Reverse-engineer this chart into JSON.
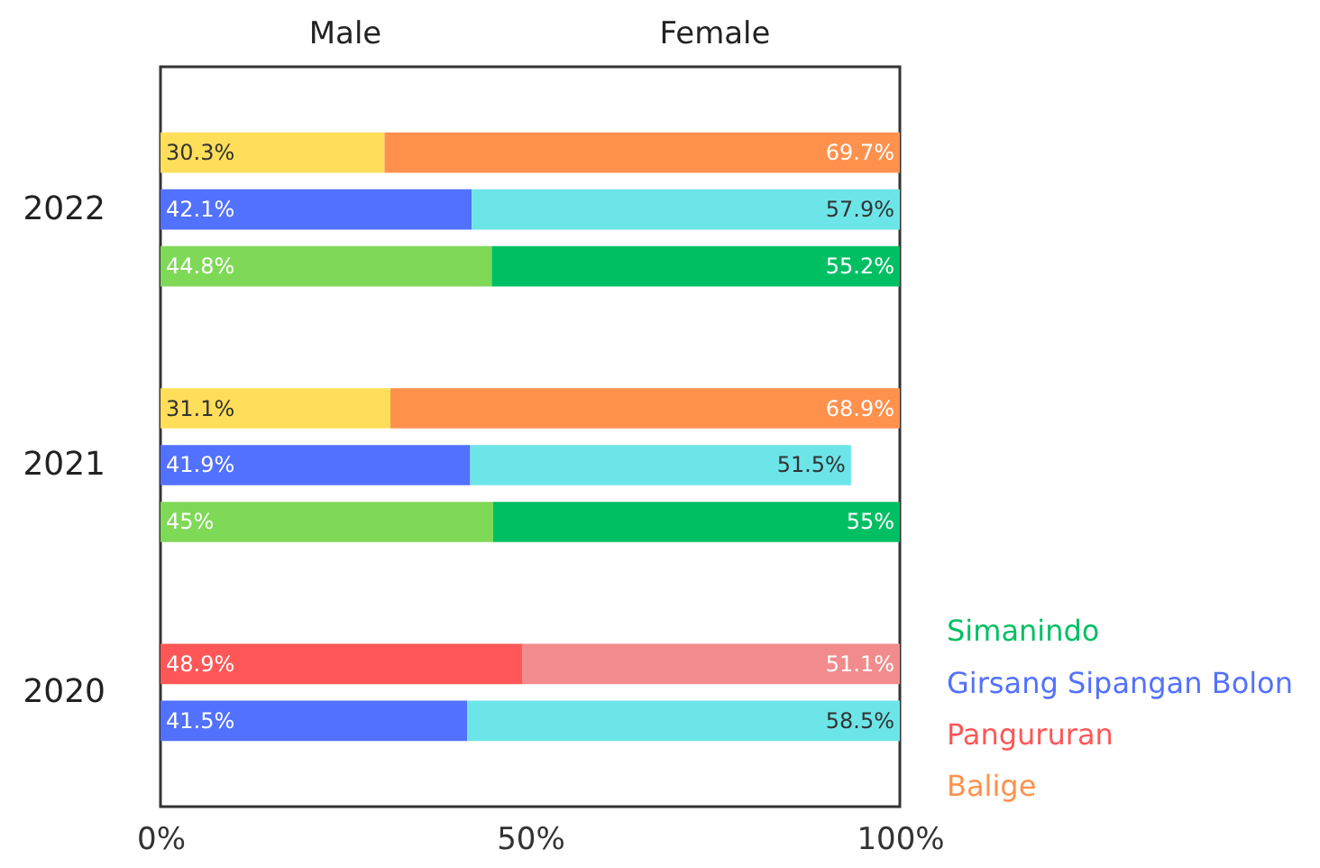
{
  "chart_data": {
    "type": "bar",
    "orientation": "horizontal",
    "stacked": true,
    "categories": [
      null,
      null,
      "2022",
      null,
      null,
      null,
      null,
      null,
      null,
      null,
      null,
      "2021",
      null,
      null,
      null,
      null,
      null,
      null,
      null,
      "2020",
      null
    ],
    "annotations": [
      "Male",
      "Female"
    ],
    "xlim": [
      0,
      100
    ],
    "xticks": [
      {
        "value": 0,
        "label": "0%"
      },
      {
        "value": 50,
        "label": "50%"
      },
      {
        "value": 100,
        "label": "100%"
      }
    ],
    "series": [
      {
        "color": "#ffde59",
        "values": [
          30.3,
          null,
          null,
          null,
          null,
          null,
          null,
          null,
          null,
          31.1,
          null,
          null,
          null,
          null,
          null,
          null,
          null,
          null,
          null,
          null,
          null
        ],
        "value_labels": [
          "30.3%",
          null,
          null,
          null,
          null,
          null,
          null,
          null,
          null,
          "31.1%",
          null,
          null,
          null,
          null,
          null,
          null,
          null,
          null,
          null,
          null,
          null
        ]
      },
      {
        "name": "Balige",
        "color": "#ff914d",
        "values": [
          69.7,
          null,
          null,
          null,
          null,
          null,
          null,
          null,
          null,
          68.9,
          null,
          null,
          null,
          null,
          null,
          null,
          null,
          null,
          null,
          null,
          null
        ],
        "value_labels": [
          "69.7%",
          null,
          null,
          null,
          null,
          null,
          null,
          null,
          null,
          "68.9%",
          null,
          null,
          null,
          null,
          null,
          null,
          null,
          null,
          null,
          null,
          null
        ]
      },
      {
        "name": "Pangururan",
        "color": "#ff5757",
        "values": [
          null,
          null,
          null,
          null,
          null,
          null,
          null,
          null,
          null,
          null,
          null,
          null,
          null,
          null,
          null,
          null,
          null,
          null,
          48.9,
          null,
          null
        ],
        "value_labels": [
          null,
          null,
          null,
          null,
          null,
          null,
          null,
          null,
          null,
          null,
          null,
          null,
          null,
          null,
          null,
          null,
          null,
          null,
          "48.9%",
          null,
          null
        ]
      },
      {
        "color": "#f28c8c",
        "values": [
          null,
          null,
          null,
          null,
          null,
          null,
          null,
          null,
          null,
          null,
          null,
          null,
          null,
          null,
          null,
          null,
          null,
          null,
          51.1,
          null,
          null
        ],
        "value_labels": [
          null,
          null,
          null,
          null,
          null,
          null,
          null,
          null,
          null,
          null,
          null,
          null,
          null,
          null,
          null,
          null,
          null,
          null,
          "51.1%",
          null,
          null
        ]
      },
      {
        "name": "Girsang Sipangan Bolon",
        "color": "#5271ff",
        "values": [
          null,
          null,
          42.1,
          null,
          null,
          null,
          null,
          null,
          null,
          null,
          null,
          41.9,
          null,
          null,
          null,
          null,
          null,
          null,
          null,
          null,
          41.5
        ],
        "value_labels": [
          null,
          null,
          "42.1%",
          null,
          null,
          null,
          null,
          null,
          null,
          null,
          null,
          "41.9%",
          null,
          null,
          null,
          null,
          null,
          null,
          null,
          null,
          "41.5%"
        ]
      },
      {
        "color": "#6ce5e8",
        "values": [
          null,
          null,
          57.9,
          null,
          null,
          null,
          null,
          null,
          null,
          null,
          null,
          51.5,
          null,
          null,
          null,
          null,
          null,
          null,
          null,
          null,
          58.5
        ],
        "value_labels": [
          null,
          null,
          "57.9%",
          null,
          null,
          null,
          null,
          null,
          null,
          null,
          null,
          "51.5%",
          null,
          null,
          null,
          null,
          null,
          null,
          null,
          null,
          "58.5%"
        ]
      },
      {
        "color": "#7ed957",
        "values": [
          null,
          null,
          null,
          null,
          44.8,
          null,
          null,
          null,
          null,
          null,
          null,
          null,
          null,
          45,
          null,
          null,
          null,
          null,
          null,
          null,
          null
        ],
        "value_labels": [
          null,
          null,
          null,
          null,
          "44.8%",
          null,
          null,
          null,
          null,
          null,
          null,
          null,
          null,
          "45%",
          null,
          null,
          null,
          null,
          null,
          null,
          null
        ]
      },
      {
        "name": "Simanindo",
        "color": "#00bf63",
        "values": [
          null,
          null,
          null,
          null,
          55.2,
          null,
          null,
          null,
          null,
          null,
          null,
          null,
          null,
          55,
          null,
          null,
          null,
          null,
          null,
          null,
          null
        ],
        "value_labels": [
          null,
          null,
          null,
          null,
          "55.2%",
          null,
          null,
          null,
          null,
          null,
          null,
          null,
          null,
          "55%",
          null,
          null,
          null,
          null,
          null,
          null,
          null
        ]
      }
    ]
  }
}
